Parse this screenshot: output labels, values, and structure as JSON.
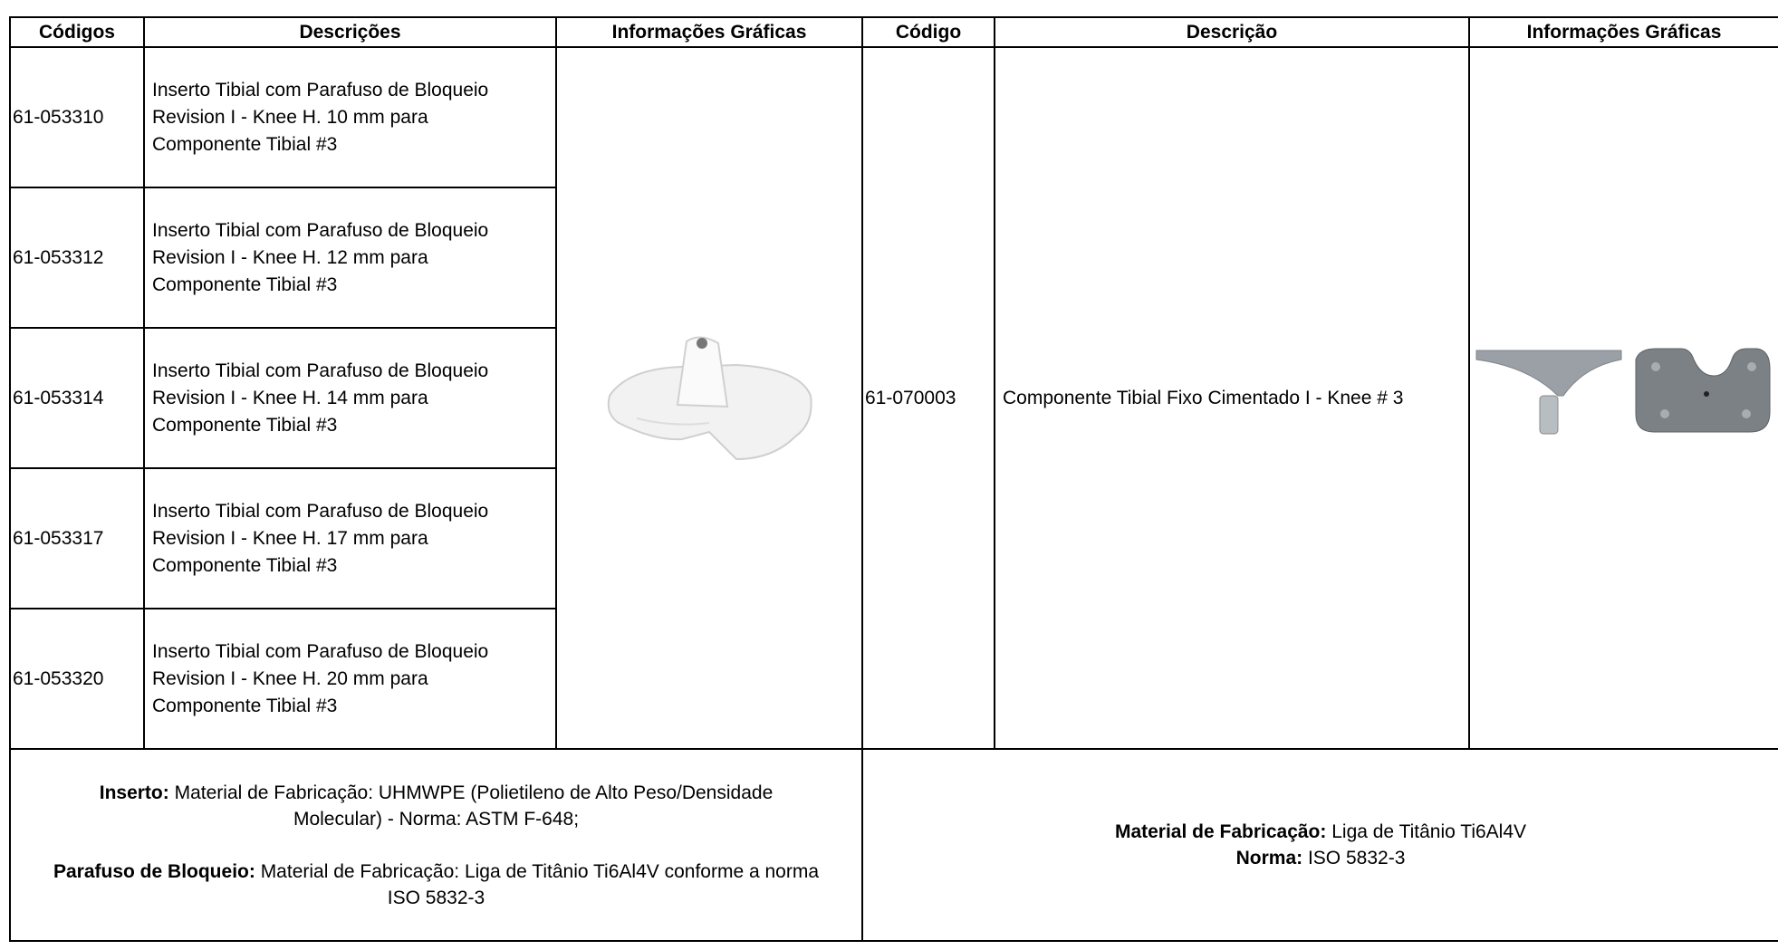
{
  "table": {
    "header": [
      "Códigos",
      "Descrições",
      "Informações Gráficas",
      "Código",
      "Descrição",
      "Informações Gráficas"
    ],
    "left_rows": [
      {
        "code": "61-053310",
        "description": "Inserto Tibial com  Parafuso de Bloqueio Revision I - Knee  H. 10 mm  para Componente Tibial #3"
      },
      {
        "code": "61-053312",
        "description": "Inserto Tibial com  Parafuso de Bloqueio Revision I - Knee  H. 12 mm  para Componente Tibial #3"
      },
      {
        "code": "61-053314",
        "description": "Inserto Tibial com  Parafuso de Bloqueio Revision I - Knee  H. 14 mm  para Componente Tibial #3"
      },
      {
        "code": "61-053317",
        "description": "Inserto Tibial com  Parafuso de Bloqueio Revision I - Knee  H. 17 mm  para Componente Tibial #3"
      },
      {
        "code": "61-053320",
        "description": "Inserto Tibial com  Parafuso de Bloqueio Revision I - Knee  H. 20 mm  para Componente Tibial #3"
      }
    ],
    "right_row": {
      "code": "61-070003",
      "description": "Componente Tibial Fixo Cimentado I - Knee # 3"
    },
    "footer_left": {
      "insert_label": "Inserto:",
      "insert_text": "Material de Fabricação: UHMWPE (Polietileno de Alto Peso/Densidade Molecular) - Norma: ASTM F-648;",
      "screw_label": "Parafuso de Bloqueio:",
      "screw_text": "Material de Fabricação: Liga de Titânio Ti6Al4V conforme a norma ISO 5832-3"
    },
    "footer_right": {
      "material_label": "Material de Fabricação:",
      "material_text": "Liga de Titânio Ti6Al4V",
      "norm_label": "Norma:",
      "norm_text": "ISO 5832-3"
    }
  }
}
